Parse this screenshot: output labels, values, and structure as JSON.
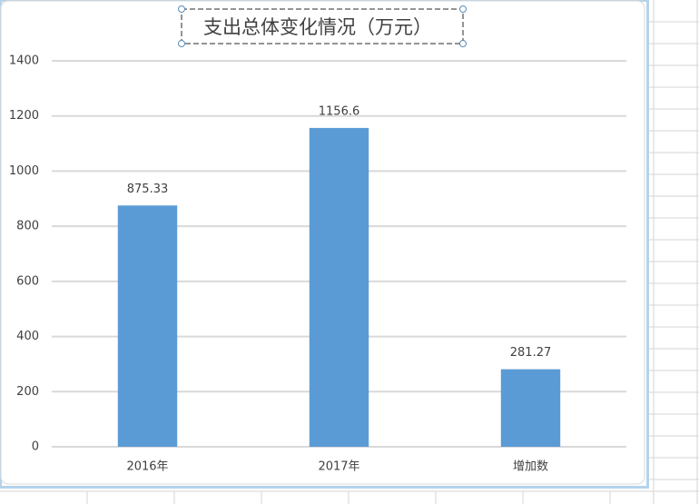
{
  "chart_data": {
    "type": "bar",
    "title": "支出总体变化情况（万元）",
    "categories": [
      "2016年",
      "2017年",
      "增加数"
    ],
    "values": [
      875.33,
      1156.6,
      281.27
    ],
    "color": "#5b9bd5",
    "ylim": [
      0,
      1400
    ],
    "yticks": [
      0,
      200,
      400,
      600,
      800,
      1000,
      1200,
      1400
    ],
    "grid": true
  }
}
